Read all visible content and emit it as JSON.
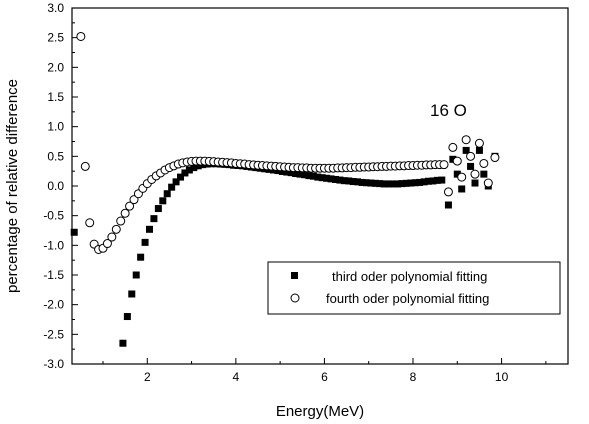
{
  "chart_data": {
    "type": "scatter",
    "xlabel": "Energy(MeV)",
    "ylabel": "percentage of relative difference",
    "xlim": [
      0.3,
      11.5
    ],
    "ylim": [
      -3.0,
      3.0
    ],
    "x_ticks": [
      2,
      4,
      6,
      8,
      10
    ],
    "x_tick_labels": [
      "2",
      "4",
      "6",
      "8",
      "10"
    ],
    "y_ticks": [
      -3.0,
      -2.5,
      -2.0,
      -1.5,
      -1.0,
      -0.5,
      0.0,
      0.5,
      1.0,
      1.5,
      2.0,
      2.5,
      3.0
    ],
    "y_tick_labels": [
      "-3.0",
      "-2.5",
      "-2.0",
      "-1.5",
      "-1.0",
      "-0.5",
      "0.0",
      "0.5",
      "1.0",
      "1.5",
      "2.0",
      "2.5",
      "3.0"
    ],
    "grid": false,
    "legend_position": "bottom-right",
    "annotation": {
      "text": "16 O",
      "x": 8.8,
      "y": 1.18
    },
    "series": [
      {
        "name": "third oder polynomial fitting",
        "marker": "filled-square",
        "color": "#000000",
        "points": [
          [
            0.35,
            -0.78
          ],
          [
            1.45,
            -2.65
          ],
          [
            1.55,
            -2.2
          ],
          [
            1.65,
            -1.82
          ],
          [
            1.75,
            -1.5
          ],
          [
            1.85,
            -1.2
          ],
          [
            1.95,
            -0.95
          ],
          [
            2.05,
            -0.73
          ],
          [
            2.15,
            -0.55
          ],
          [
            2.25,
            -0.38
          ],
          [
            2.35,
            -0.25
          ],
          [
            2.45,
            -0.13
          ],
          [
            2.55,
            -0.02
          ],
          [
            2.65,
            0.07
          ],
          [
            2.75,
            0.15
          ],
          [
            2.85,
            0.22
          ],
          [
            2.95,
            0.27
          ],
          [
            3.05,
            0.31
          ],
          [
            3.15,
            0.34
          ],
          [
            3.25,
            0.36
          ],
          [
            3.35,
            0.37
          ],
          [
            3.45,
            0.375
          ],
          [
            3.55,
            0.375
          ],
          [
            3.65,
            0.37
          ],
          [
            3.75,
            0.365
          ],
          [
            3.85,
            0.36
          ],
          [
            3.95,
            0.35
          ],
          [
            4.05,
            0.345
          ],
          [
            4.15,
            0.34
          ],
          [
            4.25,
            0.33
          ],
          [
            4.35,
            0.32
          ],
          [
            4.45,
            0.31
          ],
          [
            4.55,
            0.3
          ],
          [
            4.65,
            0.29
          ],
          [
            4.75,
            0.28
          ],
          [
            4.85,
            0.27
          ],
          [
            4.95,
            0.26
          ],
          [
            5.05,
            0.245
          ],
          [
            5.15,
            0.235
          ],
          [
            5.25,
            0.225
          ],
          [
            5.35,
            0.21
          ],
          [
            5.45,
            0.2
          ],
          [
            5.55,
            0.19
          ],
          [
            5.65,
            0.175
          ],
          [
            5.75,
            0.165
          ],
          [
            5.85,
            0.15
          ],
          [
            5.95,
            0.14
          ],
          [
            6.05,
            0.13
          ],
          [
            6.15,
            0.12
          ],
          [
            6.25,
            0.11
          ],
          [
            6.35,
            0.1
          ],
          [
            6.45,
            0.09
          ],
          [
            6.55,
            0.085
          ],
          [
            6.65,
            0.075
          ],
          [
            6.75,
            0.07
          ],
          [
            6.85,
            0.06
          ],
          [
            6.95,
            0.055
          ],
          [
            7.05,
            0.05
          ],
          [
            7.15,
            0.045
          ],
          [
            7.25,
            0.04
          ],
          [
            7.35,
            0.035
          ],
          [
            7.45,
            0.035
          ],
          [
            7.55,
            0.035
          ],
          [
            7.65,
            0.035
          ],
          [
            7.75,
            0.04
          ],
          [
            7.85,
            0.045
          ],
          [
            7.95,
            0.05
          ],
          [
            8.05,
            0.055
          ],
          [
            8.15,
            0.06
          ],
          [
            8.25,
            0.07
          ],
          [
            8.35,
            0.08
          ],
          [
            8.45,
            0.085
          ],
          [
            8.55,
            0.095
          ],
          [
            8.65,
            0.1
          ],
          [
            8.8,
            -0.32
          ],
          [
            8.9,
            0.45
          ],
          [
            9.0,
            0.2
          ],
          [
            9.1,
            -0.05
          ],
          [
            9.2,
            0.6
          ],
          [
            9.3,
            0.33
          ],
          [
            9.4,
            0.05
          ],
          [
            9.5,
            0.6
          ],
          [
            9.6,
            0.2
          ],
          [
            9.7,
            0.0
          ],
          [
            9.85,
            0.5
          ]
        ]
      },
      {
        "name": "fourth oder polynomial fitting",
        "marker": "open-circle",
        "color": "#000000",
        "points": [
          [
            0.5,
            2.52
          ],
          [
            0.6,
            0.33
          ],
          [
            0.7,
            -0.62
          ],
          [
            0.8,
            -0.98
          ],
          [
            0.9,
            -1.07
          ],
          [
            1.0,
            -1.05
          ],
          [
            1.1,
            -0.97
          ],
          [
            1.2,
            -0.86
          ],
          [
            1.3,
            -0.73
          ],
          [
            1.4,
            -0.59
          ],
          [
            1.5,
            -0.46
          ],
          [
            1.6,
            -0.34
          ],
          [
            1.7,
            -0.23
          ],
          [
            1.8,
            -0.13
          ],
          [
            1.9,
            -0.04
          ],
          [
            2.0,
            0.04
          ],
          [
            2.1,
            0.11
          ],
          [
            2.2,
            0.17
          ],
          [
            2.3,
            0.22
          ],
          [
            2.4,
            0.27
          ],
          [
            2.5,
            0.31
          ],
          [
            2.6,
            0.34
          ],
          [
            2.7,
            0.37
          ],
          [
            2.8,
            0.39
          ],
          [
            2.9,
            0.405
          ],
          [
            3.0,
            0.415
          ],
          [
            3.1,
            0.42
          ],
          [
            3.2,
            0.42
          ],
          [
            3.3,
            0.42
          ],
          [
            3.4,
            0.415
          ],
          [
            3.5,
            0.41
          ],
          [
            3.6,
            0.405
          ],
          [
            3.7,
            0.4
          ],
          [
            3.8,
            0.395
          ],
          [
            3.9,
            0.39
          ],
          [
            4.0,
            0.38
          ],
          [
            4.1,
            0.375
          ],
          [
            4.2,
            0.37
          ],
          [
            4.3,
            0.36
          ],
          [
            4.4,
            0.355
          ],
          [
            4.5,
            0.35
          ],
          [
            4.6,
            0.345
          ],
          [
            4.7,
            0.34
          ],
          [
            4.8,
            0.335
          ],
          [
            4.9,
            0.33
          ],
          [
            5.0,
            0.325
          ],
          [
            5.1,
            0.32
          ],
          [
            5.2,
            0.315
          ],
          [
            5.3,
            0.31
          ],
          [
            5.4,
            0.31
          ],
          [
            5.5,
            0.305
          ],
          [
            5.6,
            0.305
          ],
          [
            5.7,
            0.3
          ],
          [
            5.8,
            0.3
          ],
          [
            5.9,
            0.3
          ],
          [
            6.0,
            0.3
          ],
          [
            6.1,
            0.3
          ],
          [
            6.2,
            0.3
          ],
          [
            6.3,
            0.305
          ],
          [
            6.4,
            0.305
          ],
          [
            6.5,
            0.31
          ],
          [
            6.6,
            0.31
          ],
          [
            6.7,
            0.315
          ],
          [
            6.8,
            0.315
          ],
          [
            6.9,
            0.32
          ],
          [
            7.0,
            0.32
          ],
          [
            7.1,
            0.325
          ],
          [
            7.2,
            0.325
          ],
          [
            7.3,
            0.33
          ],
          [
            7.4,
            0.33
          ],
          [
            7.5,
            0.335
          ],
          [
            7.6,
            0.335
          ],
          [
            7.7,
            0.34
          ],
          [
            7.8,
            0.34
          ],
          [
            7.9,
            0.345
          ],
          [
            8.0,
            0.345
          ],
          [
            8.1,
            0.35
          ],
          [
            8.2,
            0.35
          ],
          [
            8.3,
            0.355
          ],
          [
            8.4,
            0.355
          ],
          [
            8.5,
            0.36
          ],
          [
            8.6,
            0.36
          ],
          [
            8.7,
            0.36
          ],
          [
            8.8,
            -0.1
          ],
          [
            8.9,
            0.65
          ],
          [
            9.0,
            0.42
          ],
          [
            9.1,
            0.15
          ],
          [
            9.2,
            0.78
          ],
          [
            9.3,
            0.5
          ],
          [
            9.4,
            0.2
          ],
          [
            9.5,
            0.72
          ],
          [
            9.6,
            0.38
          ],
          [
            9.7,
            0.05
          ],
          [
            9.85,
            0.48
          ]
        ]
      }
    ]
  }
}
